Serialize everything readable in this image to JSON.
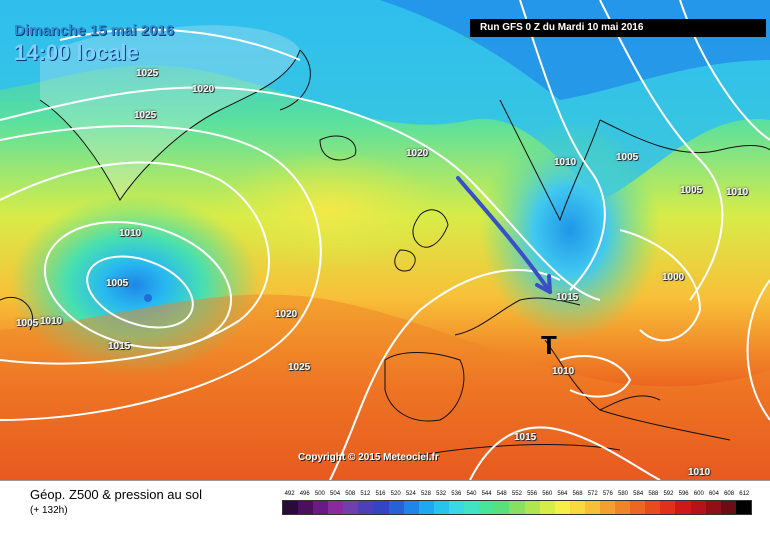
{
  "map": {
    "date_label": "Dimanche 15 mai 2016",
    "time_label": "14:00 locale",
    "run_label": "Run GFS 0 Z du Mardi 10 mai 2016",
    "copyright": "Copyright © 2015 Meteociel.fr",
    "low_marker": "T",
    "pressure_labels": [
      "1025",
      "1020",
      "1025",
      "1020",
      "1010",
      "1005",
      "1005",
      "1010",
      "1015",
      "1020",
      "1025",
      "1010",
      "1005",
      "1005",
      "1010",
      "1000",
      "1015",
      "1010",
      "1015",
      "1010"
    ]
  },
  "legend": {
    "title": "Géop. Z500 & pression au sol",
    "subtitle": "(+ 132h)",
    "scale_labels": [
      "492",
      "496",
      "500",
      "504",
      "508",
      "512",
      "516",
      "520",
      "524",
      "528",
      "532",
      "536",
      "540",
      "544",
      "548",
      "552",
      "556",
      "560",
      "564",
      "568",
      "572",
      "576",
      "580",
      "584",
      "588",
      "592",
      "596",
      "600",
      "604",
      "608",
      "612"
    ],
    "scale_colors": [
      "#2a0a3a",
      "#4b0f5e",
      "#6a1a84",
      "#8a2a9e",
      "#6f3fb0",
      "#4d3fb7",
      "#3344c4",
      "#2860d8",
      "#1f86e8",
      "#1ea8f0",
      "#28c4f0",
      "#3ad8e4",
      "#40e4c4",
      "#48e49a",
      "#5ae07a",
      "#88e060",
      "#b0e450",
      "#d8ec48",
      "#f4f048",
      "#fad840",
      "#f8c038",
      "#f4a030",
      "#f08428",
      "#ec6820",
      "#e84c1c",
      "#e03018",
      "#d01818",
      "#b41418",
      "#901018",
      "#6c0c14",
      "#000000"
    ]
  }
}
